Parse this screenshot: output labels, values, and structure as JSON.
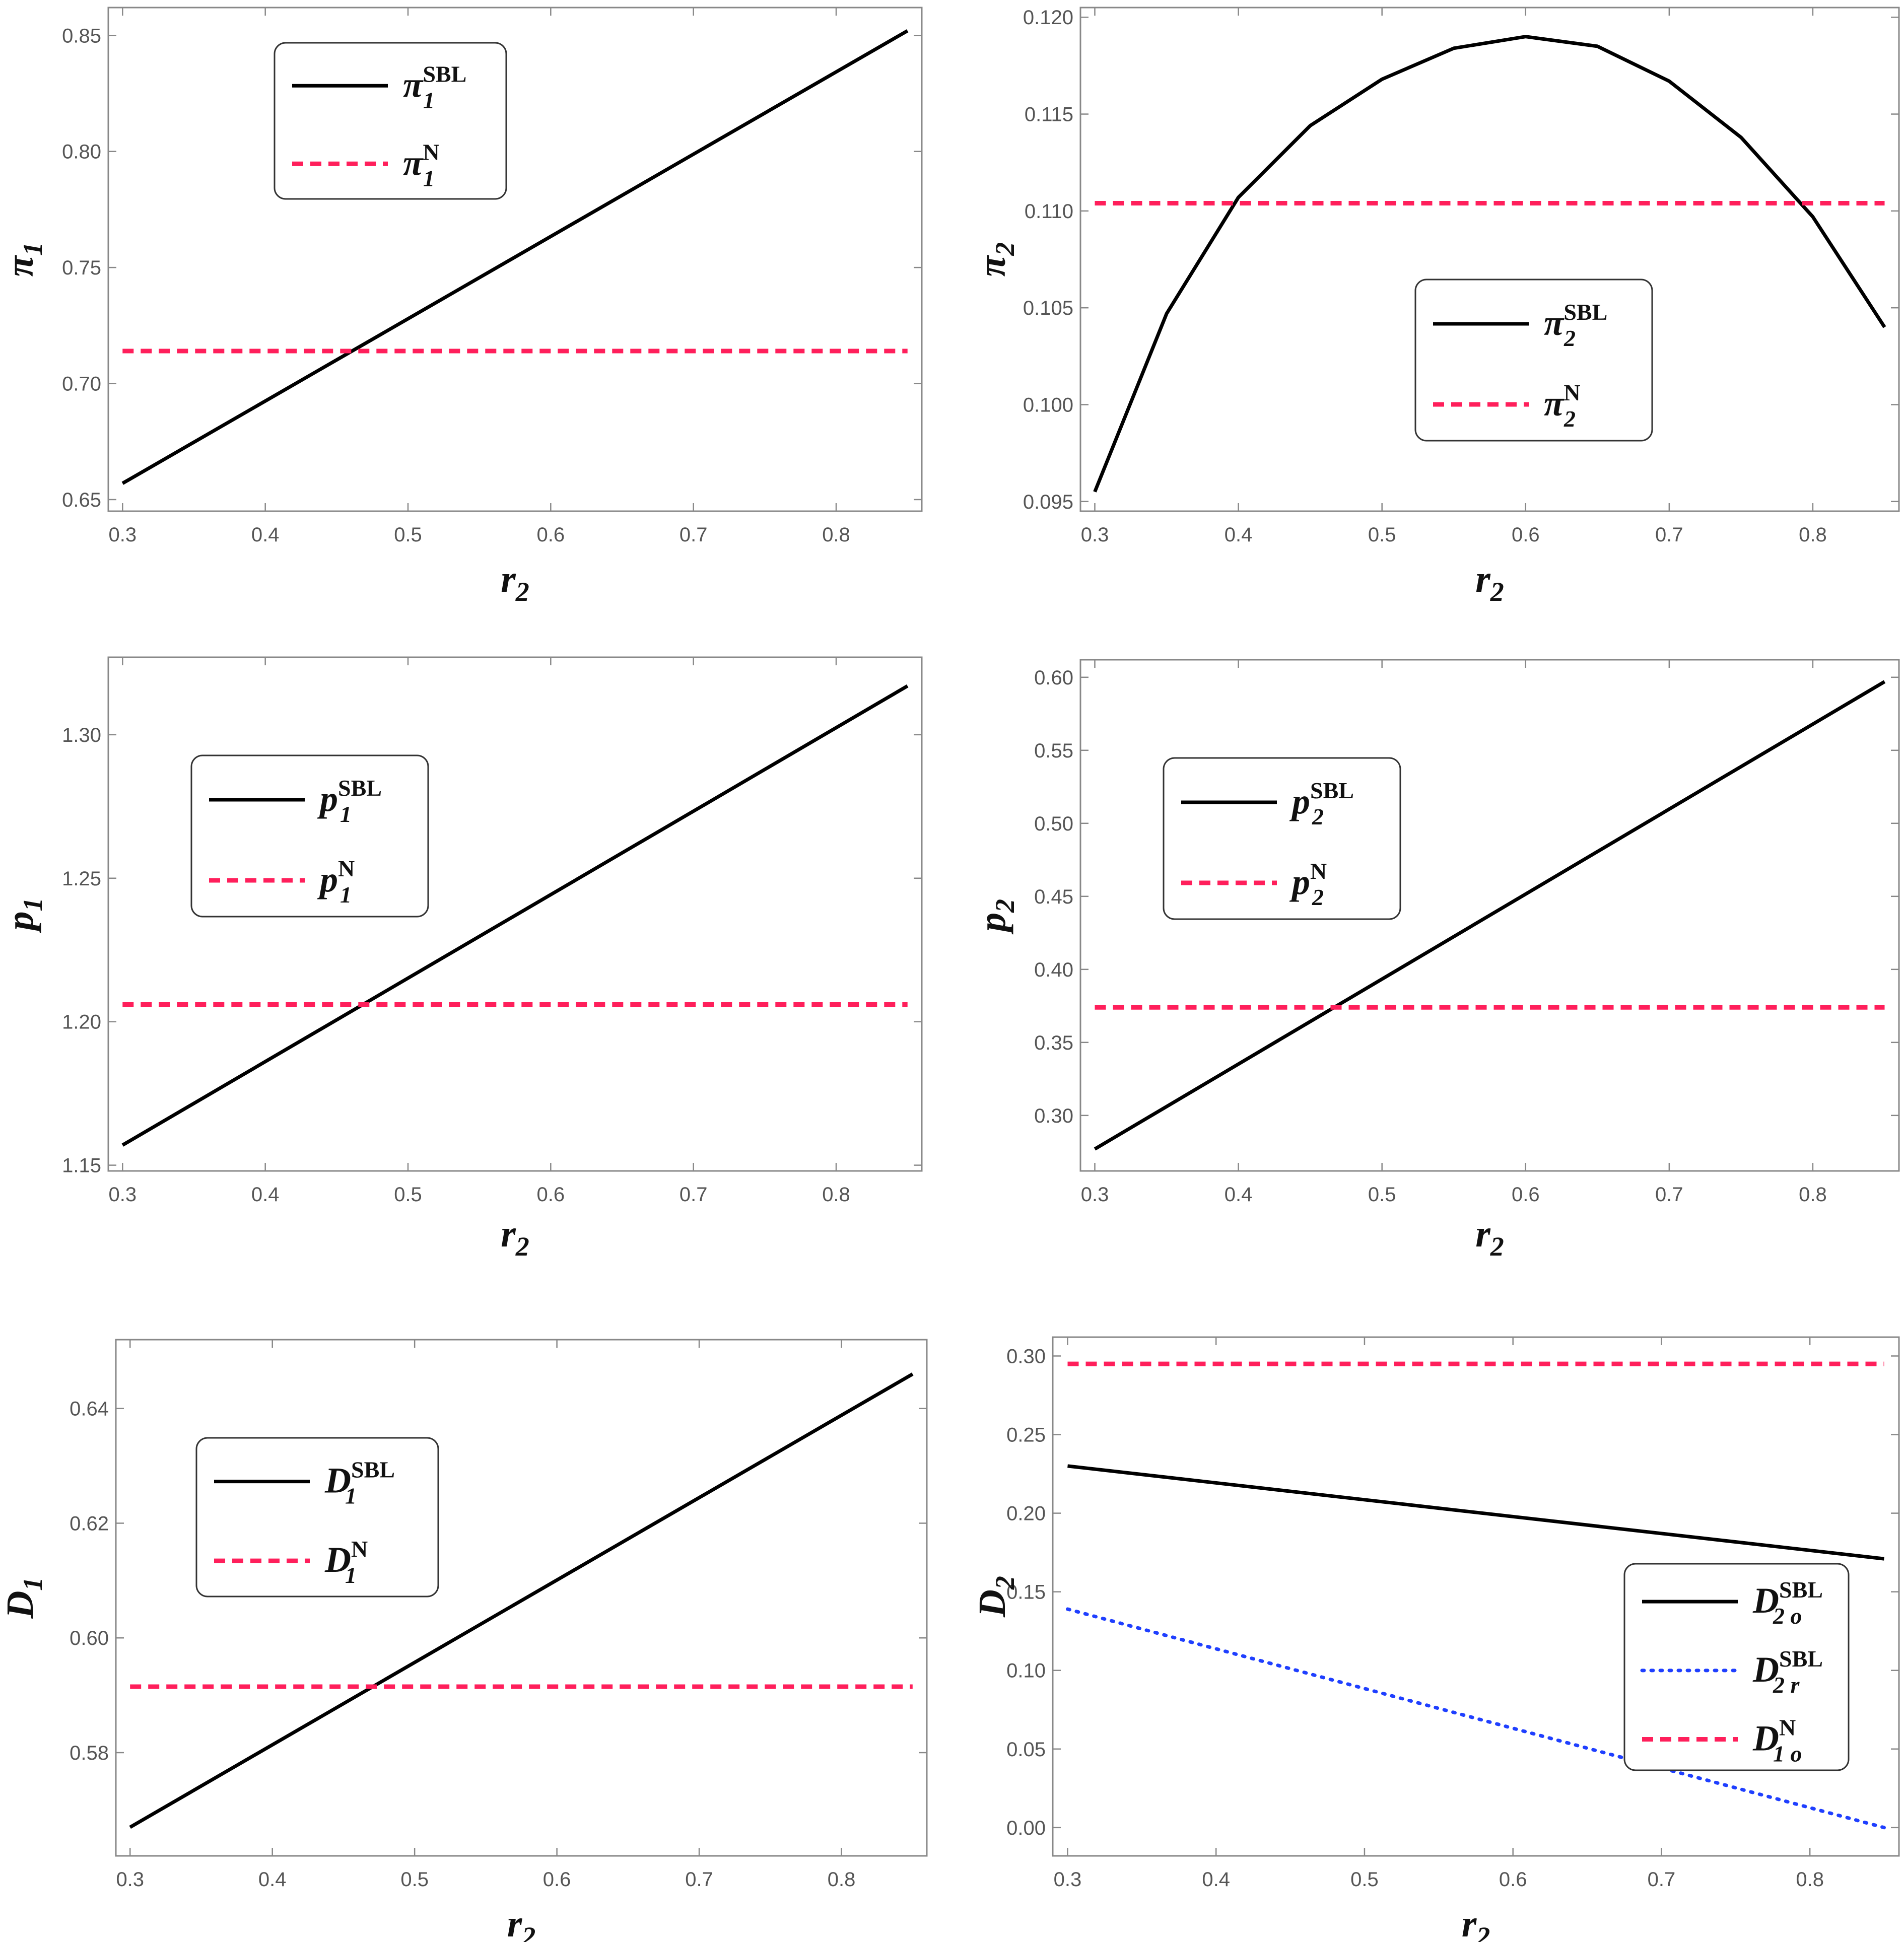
{
  "colors": {
    "sbl": "#000000",
    "n": "#ff1f5b",
    "sbl_r": "#1f3fff",
    "frame": "#888888"
  },
  "chart_data": [
    {
      "type": "line",
      "xlabel_base": "r",
      "xlabel_sub": "2",
      "ylabel_base": "π",
      "ylabel_sub": "1",
      "xlim": [
        0.29,
        0.86
      ],
      "ylim": [
        0.645,
        0.862
      ],
      "xticks": [
        "0.3",
        "0.4",
        "0.5",
        "0.6",
        "0.7",
        "0.8"
      ],
      "yticks": [
        "0.65",
        "0.70",
        "0.75",
        "0.80",
        "0.85"
      ],
      "series": [
        {
          "style": "solid",
          "x": [
            0.3,
            0.85
          ],
          "y": [
            0.657,
            0.852
          ],
          "legend": {
            "base": "π",
            "sub": "1",
            "sup": "SBL"
          }
        },
        {
          "style": "dashed",
          "x": [
            0.3,
            0.85
          ],
          "y": [
            0.714,
            0.714
          ],
          "legend": {
            "base": "π",
            "sub": "1",
            "sup": "N"
          }
        }
      ]
    },
    {
      "type": "line",
      "xlabel_base": "r",
      "xlabel_sub": "2",
      "ylabel_base": "π",
      "ylabel_sub": "2",
      "xlim": [
        0.29,
        0.86
      ],
      "ylim": [
        0.0945,
        0.1205
      ],
      "xticks": [
        "0.3",
        "0.4",
        "0.5",
        "0.6",
        "0.7",
        "0.8"
      ],
      "yticks": [
        "0.095",
        "0.100",
        "0.105",
        "0.110",
        "0.115",
        "0.120"
      ],
      "series": [
        {
          "style": "solid",
          "x": [
            0.3,
            0.35,
            0.4,
            0.45,
            0.5,
            0.55,
            0.6,
            0.65,
            0.7,
            0.75,
            0.8,
            0.85
          ],
          "y": [
            0.0955,
            0.1047,
            0.1107,
            0.1144,
            0.1168,
            0.1184,
            0.119,
            0.1185,
            0.1167,
            0.1138,
            0.1097,
            0.104
          ],
          "legend": {
            "base": "π",
            "sub": "2",
            "sup": "SBL"
          }
        },
        {
          "style": "dashed",
          "x": [
            0.3,
            0.85
          ],
          "y": [
            0.1104,
            0.1104
          ],
          "legend": {
            "base": "π",
            "sub": "2",
            "sup": "N"
          }
        }
      ]
    },
    {
      "type": "line",
      "xlabel_base": "r",
      "xlabel_sub": "2",
      "ylabel_base": "p",
      "ylabel_sub": "1",
      "xlim": [
        0.29,
        0.86
      ],
      "ylim": [
        1.148,
        1.327
      ],
      "xticks": [
        "0.3",
        "0.4",
        "0.5",
        "0.6",
        "0.7",
        "0.8"
      ],
      "yticks": [
        "1.15",
        "1.20",
        "1.25",
        "1.30"
      ],
      "series": [
        {
          "style": "solid",
          "x": [
            0.3,
            0.85
          ],
          "y": [
            1.157,
            1.317
          ],
          "legend": {
            "base": "p",
            "sub": "1",
            "sup": "SBL"
          }
        },
        {
          "style": "dashed",
          "x": [
            0.3,
            0.85
          ],
          "y": [
            1.206,
            1.206
          ],
          "legend": {
            "base": "p",
            "sub": "1",
            "sup": "N"
          }
        }
      ]
    },
    {
      "type": "line",
      "xlabel_base": "r",
      "xlabel_sub": "2",
      "ylabel_base": "p",
      "ylabel_sub": "2",
      "xlim": [
        0.29,
        0.86
      ],
      "ylim": [
        0.262,
        0.612
      ],
      "xticks": [
        "0.3",
        "0.4",
        "0.5",
        "0.6",
        "0.7",
        "0.8"
      ],
      "yticks": [
        "0.30",
        "0.35",
        "0.40",
        "0.45",
        "0.50",
        "0.55",
        "0.60"
      ],
      "series": [
        {
          "style": "solid",
          "x": [
            0.3,
            0.85
          ],
          "y": [
            0.277,
            0.597
          ],
          "legend": {
            "base": "p",
            "sub": "2",
            "sup": "SBL"
          }
        },
        {
          "style": "dashed",
          "x": [
            0.3,
            0.85
          ],
          "y": [
            0.374,
            0.374
          ],
          "legend": {
            "base": "p",
            "sub": "2",
            "sup": "N"
          }
        }
      ]
    },
    {
      "type": "line",
      "xlabel_base": "r",
      "xlabel_sub": "2",
      "ylabel_base": "D",
      "ylabel_sub": "1",
      "xlim": [
        0.29,
        0.86
      ],
      "ylim": [
        0.562,
        0.652
      ],
      "xticks": [
        "0.3",
        "0.4",
        "0.5",
        "0.6",
        "0.7",
        "0.8"
      ],
      "yticks": [
        "0.58",
        "0.60",
        "0.62",
        "0.64"
      ],
      "series": [
        {
          "style": "solid",
          "x": [
            0.3,
            0.85
          ],
          "y": [
            0.567,
            0.646
          ],
          "legend": {
            "base": "D",
            "sub": "1",
            "sup": "SBL"
          }
        },
        {
          "style": "dashed",
          "x": [
            0.3,
            0.85
          ],
          "y": [
            0.5915,
            0.5915
          ],
          "legend": {
            "base": "D",
            "sub": "1",
            "sup": "N"
          }
        }
      ]
    },
    {
      "type": "line",
      "xlabel_base": "r",
      "xlabel_sub": "2",
      "ylabel_base": "D",
      "ylabel_sub": "2",
      "xlim": [
        0.29,
        0.86
      ],
      "ylim": [
        -0.018,
        0.312
      ],
      "xticks": [
        "0.3",
        "0.4",
        "0.5",
        "0.6",
        "0.7",
        "0.8"
      ],
      "yticks": [
        "0.00",
        "0.05",
        "0.10",
        "0.15",
        "0.20",
        "0.25",
        "0.30"
      ],
      "series": [
        {
          "style": "solid",
          "x": [
            0.3,
            0.85
          ],
          "y": [
            0.23,
            0.171
          ],
          "legend": {
            "base": "D",
            "sub": "2 o",
            "sup": "SBL"
          }
        },
        {
          "style": "dotted",
          "x": [
            0.3,
            0.85
          ],
          "y": [
            0.139,
            0.0
          ],
          "legend": {
            "base": "D",
            "sub": "2 r",
            "sup": "SBL"
          }
        },
        {
          "style": "dashed",
          "x": [
            0.3,
            0.85
          ],
          "y": [
            0.295,
            0.295
          ],
          "legend": {
            "base": "D",
            "sub": "1 o",
            "sup": "N"
          }
        }
      ]
    }
  ]
}
